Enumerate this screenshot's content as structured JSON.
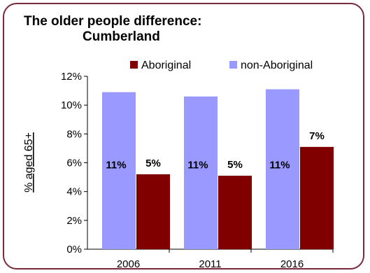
{
  "title_line1": "The older people difference:",
  "title_line2": "Cumberland",
  "chart_data": {
    "type": "bar",
    "title": "The older people difference: Cumberland",
    "ylabel": "% aged 65+",
    "xlabel": "",
    "categories": [
      "2006",
      "2011",
      "2016"
    ],
    "series": [
      {
        "name": "non-Aboriginal",
        "values": [
          10.9,
          10.6,
          11.1
        ],
        "labels": [
          "11%",
          "11%",
          "11%"
        ],
        "color": "#9999ff"
      },
      {
        "name": "Aboriginal",
        "values": [
          5.2,
          5.1,
          7.1
        ],
        "labels": [
          "5%",
          "5%",
          "7%"
        ],
        "color": "#800000"
      }
    ],
    "legend_order": [
      "Aboriginal",
      "non-Aboriginal"
    ],
    "ylim": [
      0,
      12
    ],
    "yticks": [
      0,
      2,
      4,
      6,
      8,
      10,
      12
    ],
    "ytick_labels": [
      "0%",
      "2%",
      "4%",
      "6%",
      "8%",
      "10%",
      "12%"
    ],
    "grid": false,
    "legend_position": "top"
  }
}
